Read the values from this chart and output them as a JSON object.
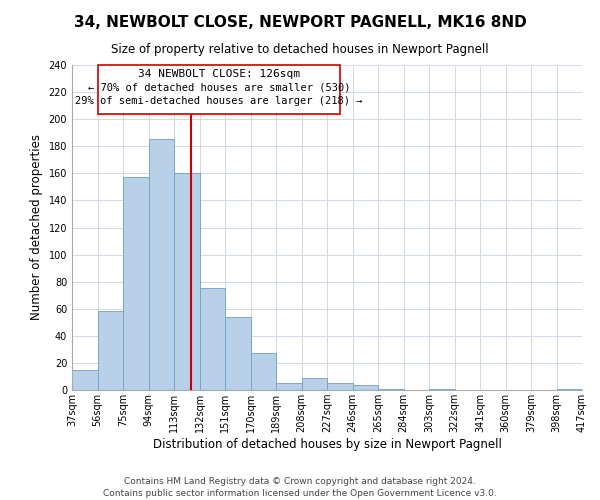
{
  "title": "34, NEWBOLT CLOSE, NEWPORT PAGNELL, MK16 8ND",
  "subtitle": "Size of property relative to detached houses in Newport Pagnell",
  "xlabel": "Distribution of detached houses by size in Newport Pagnell",
  "ylabel": "Number of detached properties",
  "bar_edges": [
    37,
    56,
    75,
    94,
    113,
    132,
    151,
    170,
    189,
    208,
    227,
    246,
    265,
    284,
    303,
    322,
    341,
    360,
    379,
    398,
    417
  ],
  "bar_heights": [
    15,
    58,
    157,
    185,
    160,
    75,
    54,
    27,
    5,
    9,
    5,
    4,
    1,
    0,
    1,
    0,
    0,
    0,
    0,
    1
  ],
  "bar_color": "#b8d0e8",
  "bar_edge_color": "#6aa0cc",
  "vline_x": 126,
  "vline_color": "#cc0000",
  "ylim": [
    0,
    240
  ],
  "xlim": [
    37,
    417
  ],
  "annotation_title": "34 NEWBOLT CLOSE: 126sqm",
  "annotation_line1": "← 70% of detached houses are smaller (530)",
  "annotation_line2": "29% of semi-detached houses are larger (218) →",
  "annotation_box_edge": "#cc0000",
  "tick_labels": [
    "37sqm",
    "56sqm",
    "75sqm",
    "94sqm",
    "113sqm",
    "132sqm",
    "151sqm",
    "170sqm",
    "189sqm",
    "208sqm",
    "227sqm",
    "246sqm",
    "265sqm",
    "284sqm",
    "303sqm",
    "322sqm",
    "341sqm",
    "360sqm",
    "379sqm",
    "398sqm",
    "417sqm"
  ],
  "footer1": "Contains HM Land Registry data © Crown copyright and database right 2024.",
  "footer2": "Contains public sector information licensed under the Open Government Licence v3.0.",
  "title_fontsize": 11,
  "subtitle_fontsize": 8.5,
  "axis_label_fontsize": 8.5,
  "tick_fontsize": 7,
  "footer_fontsize": 6.5,
  "yticks": [
    0,
    20,
    40,
    60,
    80,
    100,
    120,
    140,
    160,
    180,
    200,
    220,
    240
  ]
}
